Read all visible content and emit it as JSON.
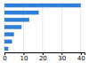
{
  "chart_data": {
    "type": "bar",
    "orientation": "horizontal",
    "categories": [
      null,
      null,
      null,
      null,
      null,
      null,
      null
    ],
    "values": [
      40,
      18,
      13,
      9,
      5,
      4,
      2
    ],
    "color": "#2f7ed8",
    "xlim": [
      0,
      42
    ],
    "xticks": [
      0,
      10,
      20,
      30,
      40
    ],
    "grid": true,
    "tick_labels": "x"
  }
}
